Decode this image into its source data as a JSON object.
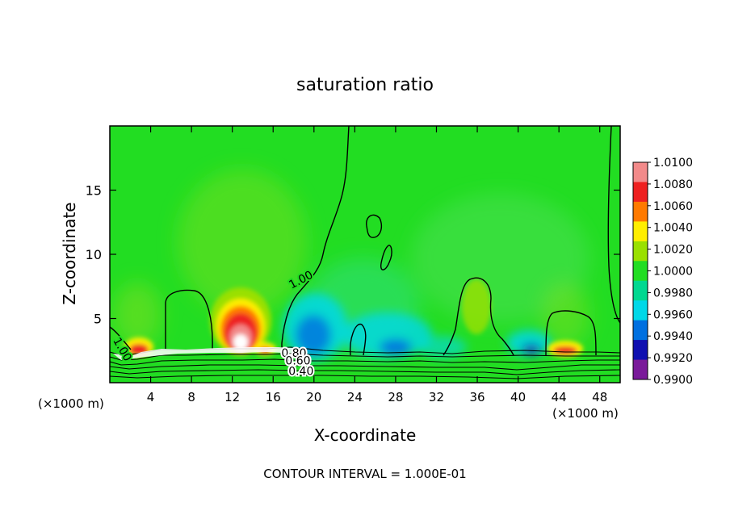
{
  "chart_data": {
    "type": "heatmap",
    "title": "saturation ratio",
    "xlabel": "X-coordinate",
    "ylabel": "Z-coordinate",
    "x_unit_left": "(×1000 m)",
    "x_unit_right": "(×1000 m)",
    "xlim": [
      0,
      50
    ],
    "ylim": [
      0,
      20
    ],
    "x_ticks": [
      4,
      8,
      12,
      16,
      20,
      24,
      28,
      32,
      36,
      40,
      44,
      48
    ],
    "y_ticks": [
      5,
      10,
      15
    ],
    "footer": "CONTOUR INTERVAL = 1.000E-01",
    "colorbar": {
      "labels": [
        "1.0100",
        "1.0080",
        "1.0060",
        "1.0040",
        "1.0020",
        "1.0000",
        "0.9980",
        "0.9960",
        "0.9940",
        "0.9920",
        "0.9900"
      ],
      "colors": [
        "#f28a8a",
        "#ee2020",
        "#ff7a00",
        "#ffee00",
        "#9ae000",
        "#22dd22",
        "#00d890",
        "#00d8e8",
        "#0070e0",
        "#1010b0",
        "#7a1a9a"
      ]
    },
    "contour_labels": [
      {
        "text": "1.00",
        "x": 17.8,
        "z": 7.3
      },
      {
        "text": "1.00",
        "x": 0.3,
        "z": 3.3
      },
      {
        "text": "0.80",
        "x": 16.8,
        "z": 2.0
      },
      {
        "text": "0.60",
        "x": 17.2,
        "z": 1.4
      },
      {
        "text": "0.40",
        "x": 17.5,
        "z": 0.6
      }
    ],
    "features": [
      {
        "x": 13.0,
        "z": 3.5,
        "value": 1.01
      },
      {
        "x": 2.8,
        "z": 2.5,
        "value": 1.006
      },
      {
        "x": 15.8,
        "z": 2.5,
        "value": 1.006
      },
      {
        "x": 44.5,
        "z": 2.6,
        "value": 1.006
      },
      {
        "x": 35.5,
        "z": 5.5,
        "value": 1.002
      },
      {
        "x": 19.5,
        "z": 3.5,
        "value": 0.995
      },
      {
        "x": 28.0,
        "z": 2.5,
        "value": 0.993
      },
      {
        "x": 41.0,
        "z": 2.5,
        "value": 0.993
      }
    ],
    "grid": false
  }
}
